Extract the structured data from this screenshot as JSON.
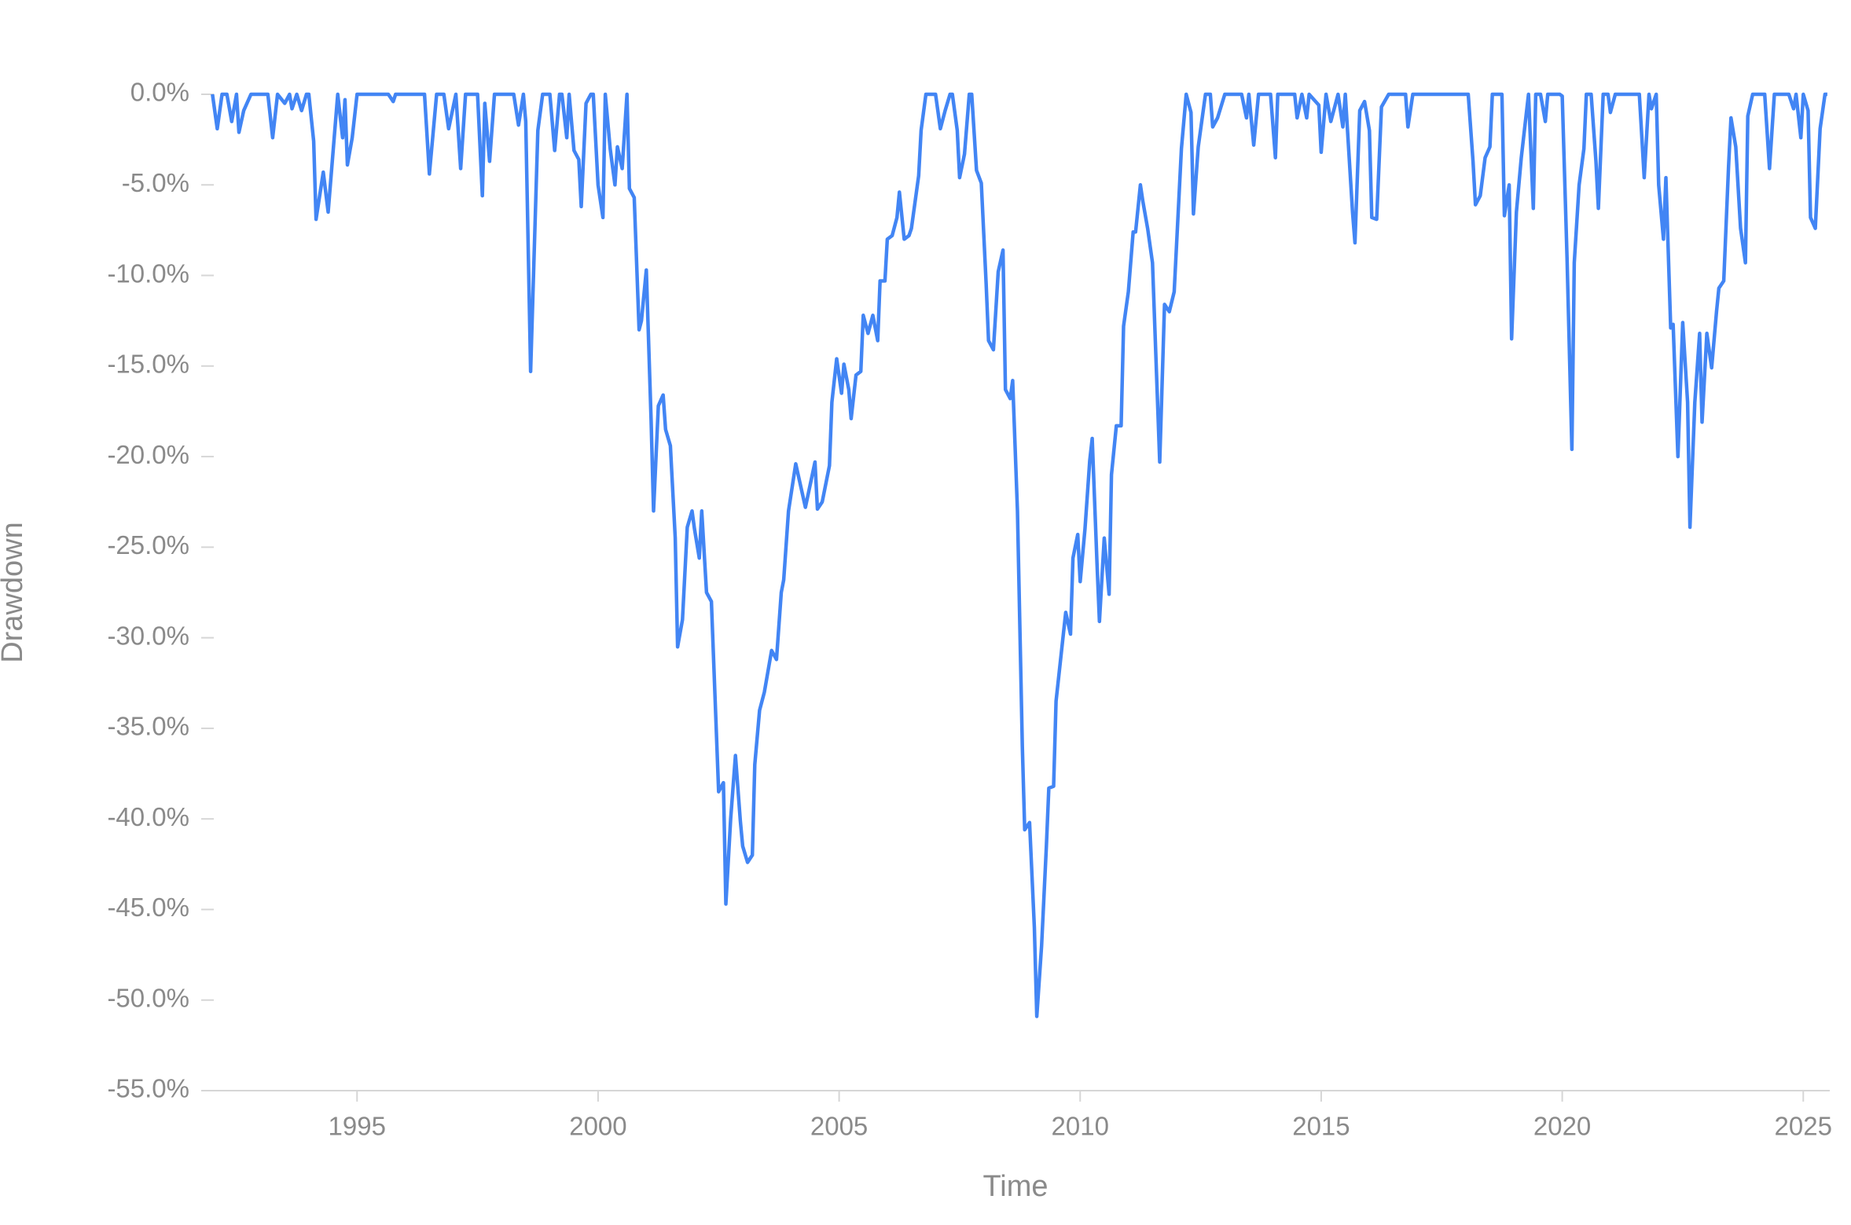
{
  "chart_data": {
    "type": "line",
    "x_label": "Time",
    "y_label": "Drawdown",
    "color": "#4285f4",
    "xlim": [
      1991.8,
      2025.55
    ],
    "xticks": [
      1995,
      2000,
      2005,
      2010,
      2015,
      2020,
      2025
    ],
    "ylim": [
      -55,
      0
    ],
    "yticks": [
      {
        "value": 0,
        "label": "0.0%"
      },
      {
        "value": -5,
        "label": "-5.0%"
      },
      {
        "value": -10,
        "label": "-10.0%"
      },
      {
        "value": -15,
        "label": "-15.0%"
      },
      {
        "value": -20,
        "label": "-20.0%"
      },
      {
        "value": -25,
        "label": "-25.0%"
      },
      {
        "value": -30,
        "label": "-30.0%"
      },
      {
        "value": -35,
        "label": "-35.0%"
      },
      {
        "value": -40,
        "label": "-40.0%"
      },
      {
        "value": -45,
        "label": "-45.0%"
      },
      {
        "value": -50,
        "label": "-50.0%"
      },
      {
        "value": -55,
        "label": "-55.0%"
      }
    ],
    "grid": false,
    "x": [
      1992.0,
      1992.1,
      1992.2,
      1992.3,
      1992.4,
      1992.5,
      1992.55,
      1992.65,
      1992.8,
      1993.15,
      1993.25,
      1993.35,
      1993.5,
      1993.6,
      1993.65,
      1993.75,
      1993.85,
      1993.95,
      1994.0,
      1994.1,
      1994.15,
      1994.3,
      1994.4,
      1994.6,
      1994.7,
      1994.75,
      1994.8,
      1994.9,
      1995.0,
      1995.65,
      1995.75,
      1995.8,
      1996.4,
      1996.5,
      1996.65,
      1996.8,
      1996.9,
      1997.05,
      1997.15,
      1997.25,
      1997.5,
      1997.6,
      1997.65,
      1997.75,
      1997.85,
      1998.25,
      1998.35,
      1998.45,
      1998.5,
      1998.6,
      1998.75,
      1998.85,
      1999.0,
      1999.1,
      1999.2,
      1999.25,
      1999.35,
      1999.4,
      1999.5,
      1999.6,
      1999.65,
      1999.75,
      1999.85,
      1999.9,
      2000.0,
      2000.1,
      2000.15,
      2000.25,
      2000.35,
      2000.4,
      2000.5,
      2000.6,
      2000.65,
      2000.75,
      2000.85,
      2000.9,
      2001.0,
      2001.1,
      2001.15,
      2001.25,
      2001.35,
      2001.4,
      2001.5,
      2001.6,
      2001.65,
      2001.75,
      2001.85,
      2001.95,
      2002.0,
      2002.1,
      2002.15,
      2002.25,
      2002.35,
      2002.5,
      2002.6,
      2002.65,
      2002.75,
      2002.85,
      2002.95,
      2003.0,
      2003.1,
      2003.2,
      2003.25,
      2003.35,
      2003.45,
      2003.6,
      2003.7,
      2003.8,
      2003.85,
      2003.95,
      2004.1,
      2004.3,
      2004.5,
      2004.55,
      2004.65,
      2004.8,
      2004.85,
      2004.95,
      2005.05,
      2005.1,
      2005.2,
      2005.25,
      2005.35,
      2005.45,
      2005.5,
      2005.6,
      2005.7,
      2005.8,
      2005.85,
      2005.95,
      2006.0,
      2006.1,
      2006.2,
      2006.25,
      2006.35,
      2006.45,
      2006.5,
      2006.65,
      2006.7,
      2006.8,
      2007.0,
      2007.1,
      2007.2,
      2007.3,
      2007.35,
      2007.45,
      2007.5,
      2007.6,
      2007.7,
      2007.75,
      2007.85,
      2007.95,
      2008.05,
      2008.1,
      2008.2,
      2008.3,
      2008.4,
      2008.45,
      2008.55,
      2008.6,
      2008.7,
      2008.8,
      2008.85,
      2008.95,
      2009.05,
      2009.1,
      2009.2,
      2009.3,
      2009.35,
      2009.45,
      2009.5,
      2009.7,
      2009.8,
      2009.85,
      2009.95,
      2010.0,
      2010.1,
      2010.2,
      2010.25,
      2010.35,
      2010.4,
      2010.5,
      2010.6,
      2010.65,
      2010.75,
      2010.85,
      2010.9,
      2011.0,
      2011.1,
      2011.15,
      2011.25,
      2011.3,
      2011.4,
      2011.5,
      2011.65,
      2011.75,
      2011.85,
      2011.95,
      2012.1,
      2012.2,
      2012.3,
      2012.35,
      2012.45,
      2012.6,
      2012.7,
      2012.75,
      2012.85,
      2013.0,
      2013.35,
      2013.45,
      2013.5,
      2013.6,
      2013.7,
      2013.95,
      2014.05,
      2014.1,
      2014.45,
      2014.5,
      2014.6,
      2014.7,
      2014.75,
      2014.95,
      2015.0,
      2015.1,
      2015.2,
      2015.35,
      2015.45,
      2015.5,
      2015.65,
      2015.7,
      2015.8,
      2015.9,
      2016.0,
      2016.05,
      2016.15,
      2016.25,
      2016.4,
      2016.75,
      2016.8,
      2016.9,
      2018.05,
      2018.15,
      2018.2,
      2018.3,
      2018.4,
      2018.5,
      2018.55,
      2018.75,
      2018.8,
      2018.9,
      2018.95,
      2019.05,
      2019.15,
      2019.3,
      2019.4,
      2019.45,
      2019.55,
      2019.65,
      2019.7,
      2019.95,
      2020.0,
      2020.1,
      2020.2,
      2020.25,
      2020.35,
      2020.45,
      2020.5,
      2020.6,
      2020.7,
      2020.75,
      2020.85,
      2020.95,
      2021.0,
      2021.1,
      2021.6,
      2021.7,
      2021.8,
      2021.85,
      2021.95,
      2022.0,
      2022.1,
      2022.15,
      2022.25,
      2022.3,
      2022.4,
      2022.5,
      2022.6,
      2022.65,
      2022.75,
      2022.85,
      2022.9,
      2023.0,
      2023.1,
      2023.2,
      2023.25,
      2023.35,
      2023.45,
      2023.5,
      2023.6,
      2023.7,
      2023.8,
      2023.85,
      2023.95,
      2024.2,
      2024.3,
      2024.4,
      2024.7,
      2024.8,
      2024.85,
      2024.95,
      2025.0,
      2025.1,
      2025.15,
      2025.25,
      2025.35,
      2025.45,
      2025.5
    ],
    "values": [
      0,
      -1.9,
      0,
      0,
      -1.5,
      0,
      -2.1,
      -0.9,
      0,
      0,
      -2.4,
      0,
      -0.5,
      0,
      -0.8,
      0,
      -0.9,
      0,
      0,
      -2.6,
      -6.9,
      -4.3,
      -6.5,
      0,
      -2.4,
      -0.3,
      -3.9,
      -2.4,
      0,
      0,
      -0.4,
      0,
      0,
      -4.4,
      0,
      0,
      -1.9,
      0,
      -4.1,
      0,
      0,
      -5.6,
      -0.5,
      -3.7,
      0,
      0,
      -1.7,
      0,
      -1.5,
      -15.3,
      -2,
      0,
      0,
      -3.1,
      0,
      0,
      -2.4,
      0,
      -3.1,
      -3.6,
      -6.2,
      -0.5,
      0,
      0,
      -5,
      -6.8,
      0,
      -3,
      -5,
      -2.9,
      -4.1,
      0,
      -5.2,
      -5.7,
      -13,
      -12.5,
      -9.7,
      -18,
      -23,
      -17.2,
      -16.6,
      -18.5,
      -19.4,
      -24.5,
      -30.5,
      -29,
      -23.9,
      -23,
      -24,
      -25.6,
      -23,
      -27.5,
      -28,
      -38.5,
      -38,
      -44.7,
      -40,
      -36.5,
      -40.1,
      -41.5,
      -42.4,
      -42,
      -37,
      -34,
      -33,
      -30.7,
      -31.2,
      -27.5,
      -26.8,
      -23,
      -20.4,
      -22.8,
      -20.3,
      -22.9,
      -22.5,
      -20.5,
      -17,
      -14.6,
      -16.5,
      -14.9,
      -16.3,
      -17.9,
      -15.5,
      -15.3,
      -12.2,
      -13.2,
      -12.2,
      -13.6,
      -10.3,
      -10.3,
      -8,
      -7.8,
      -6.8,
      -5.4,
      -8,
      -7.8,
      -7.4,
      -4.5,
      -2,
      0,
      0,
      -1.9,
      -0.9,
      0,
      0,
      -2,
      -4.6,
      -3.3,
      0,
      0,
      -4.2,
      -4.9,
      -10.5,
      -13.6,
      -14.1,
      -9.8,
      -8.6,
      -16.3,
      -16.8,
      -15.8,
      -23,
      -36,
      -40.6,
      -40.2,
      -46,
      -50.9,
      -47,
      -41.5,
      -38.3,
      -38.2,
      -33.5,
      -28.6,
      -29.8,
      -25.6,
      -24.3,
      -26.9,
      -24,
      -20.2,
      -19,
      -25.9,
      -29.1,
      -24.5,
      -27.6,
      -21,
      -18.3,
      -18.3,
      -12.8,
      -10.9,
      -7.6,
      -7.6,
      -5,
      -5.9,
      -7.4,
      -9.3,
      -20.3,
      -11.6,
      -12,
      -10.9,
      -3,
      0,
      -1,
      -6.6,
      -2.9,
      0,
      0,
      -1.8,
      -1.3,
      0,
      0,
      -1.3,
      0,
      -2.8,
      0,
      0,
      -3.5,
      0,
      0,
      -1.3,
      0,
      -1.3,
      0,
      -0.6,
      -3.2,
      0,
      -1.5,
      0,
      -1.8,
      0,
      -6.5,
      -8.2,
      -0.9,
      -0.4,
      -2,
      -6.8,
      -6.9,
      -0.7,
      0,
      0,
      -1.8,
      0,
      0,
      -3.7,
      -6.1,
      -5.6,
      -3.5,
      -2.9,
      0,
      0,
      -6.7,
      -5,
      -13.5,
      -6.5,
      -3.5,
      0,
      -6.3,
      0,
      0,
      -1.5,
      0,
      0,
      -0.1,
      -9,
      -19.6,
      -9.3,
      -5,
      -3,
      0,
      0,
      -3.7,
      -6.3,
      0,
      0,
      -1,
      0,
      0,
      -4.6,
      0,
      -0.8,
      0,
      -5,
      -8,
      -4.6,
      -12.9,
      -12.7,
      -20,
      -12.6,
      -17,
      -23.9,
      -17,
      -13.2,
      -18.1,
      -13.2,
      -15.1,
      -12,
      -10.7,
      -10.3,
      -4,
      -1.3,
      -2.9,
      -7.4,
      -9.3,
      -1.2,
      0,
      0,
      -4.1,
      0,
      0,
      -0.8,
      0,
      -2.4,
      0,
      -0.9,
      -6.8,
      -7.4,
      -1.9,
      0,
      0
    ]
  }
}
